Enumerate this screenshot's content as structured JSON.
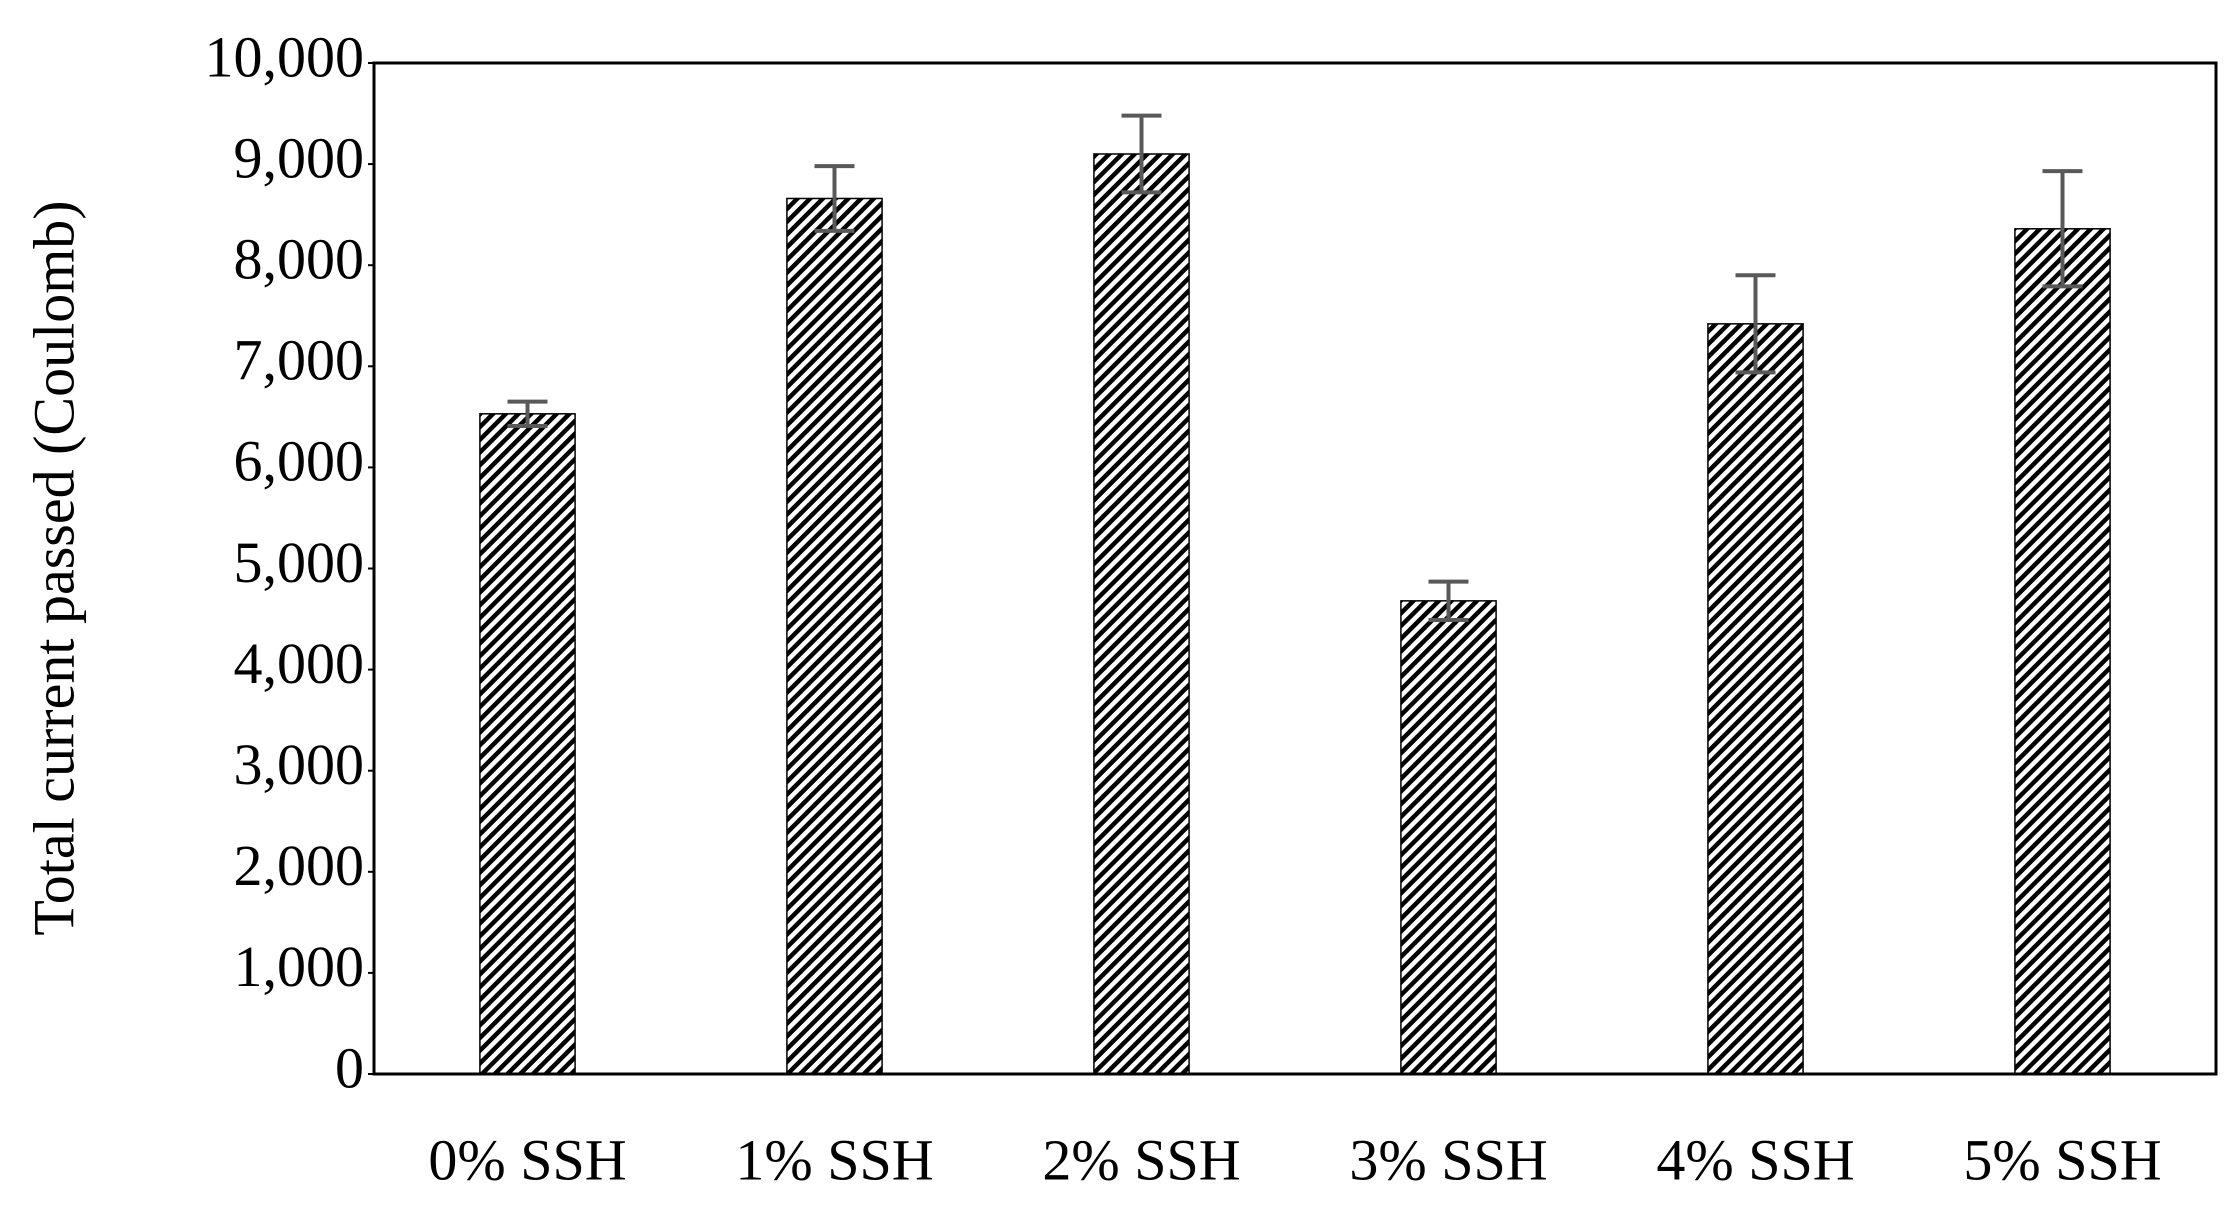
{
  "chart_data": {
    "type": "bar",
    "y_label": "Total current passed (Coulomb)",
    "categories": [
      "0% SSH",
      "1% SSH",
      "2% SSH",
      "3% SSH",
      "4% SSH",
      "5% SSH"
    ],
    "values": [
      6530,
      8660,
      9100,
      4680,
      7420,
      8360
    ],
    "errors": [
      120,
      320,
      380,
      190,
      480,
      570
    ],
    "color": "#000000",
    "error_color": "#595959",
    "ylim": [
      0,
      10000
    ],
    "yticks": [
      0,
      {
        "value": 1000,
        "label": "1,000"
      },
      {
        "value": 2000,
        "label": "2,000"
      },
      {
        "value": 3000,
        "label": "3,000"
      },
      {
        "value": 4000,
        "label": "4,000"
      },
      {
        "value": 5000,
        "label": "5,000"
      },
      {
        "value": 6000,
        "label": "6,000"
      },
      {
        "value": 7000,
        "label": "7,000"
      },
      {
        "value": 8000,
        "label": "8,000"
      },
      {
        "value": 9000,
        "label": "9,000"
      },
      {
        "value": 10000,
        "label": "10,000"
      }
    ],
    "grid": false
  }
}
